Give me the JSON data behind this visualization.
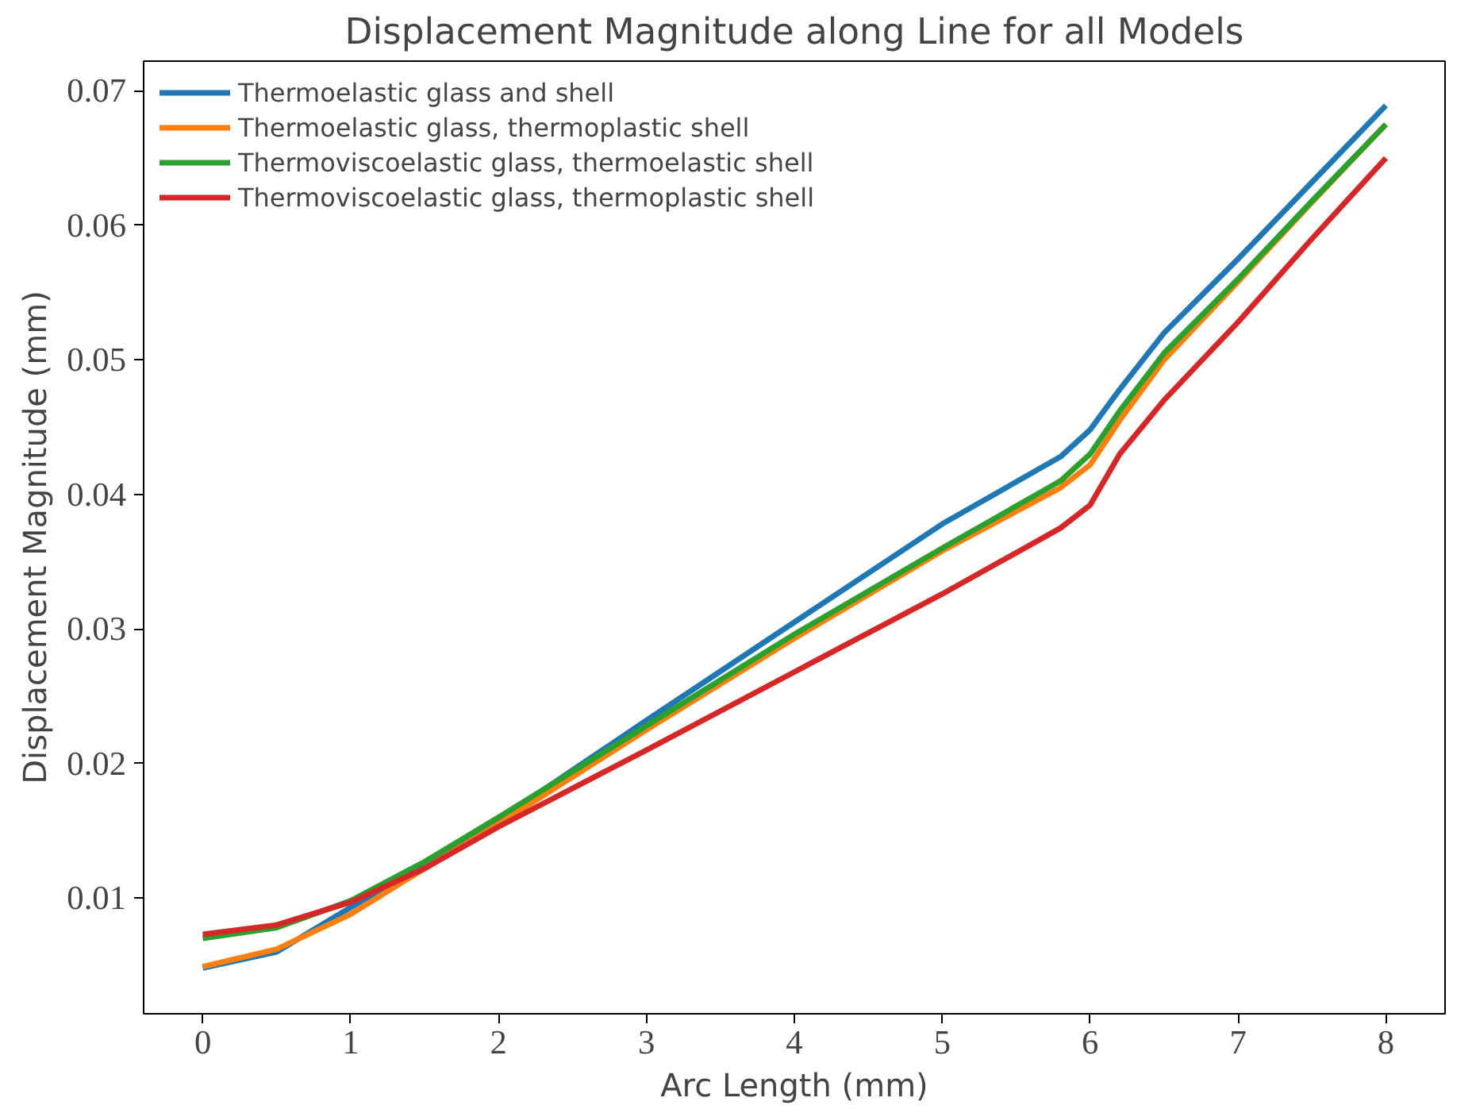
{
  "chart_data": {
    "type": "line",
    "title": "Displacement Magnitude along Line for all Models",
    "xlabel": "Arc Length (mm)",
    "ylabel": "Displacement Magnitude (mm)",
    "x": [
      0,
      0.5,
      1,
      1.5,
      2,
      3,
      4,
      5,
      5.8,
      6,
      6.2,
      6.5,
      7,
      7.5,
      8
    ],
    "series": [
      {
        "name": "Thermoelastic glass and shell",
        "color": "#1f77b4",
        "values": [
          0.0048,
          0.006,
          0.0093,
          0.0125,
          0.0158,
          0.0232,
          0.0305,
          0.0378,
          0.0428,
          0.0448,
          0.0478,
          0.052,
          0.0575,
          0.0632,
          0.0689
        ]
      },
      {
        "name": "Thermoelastic glass, thermoplastic shell",
        "color": "#ff7f0e",
        "values": [
          0.0049,
          0.0062,
          0.0088,
          0.0122,
          0.0155,
          0.0225,
          0.0293,
          0.0358,
          0.0405,
          0.0422,
          0.0455,
          0.05,
          0.0558,
          0.0617,
          0.0675
        ]
      },
      {
        "name": "Thermoviscoelastic glass, thermoelastic shell",
        "color": "#2ca02c",
        "values": [
          0.007,
          0.0078,
          0.0098,
          0.0127,
          0.016,
          0.0228,
          0.0296,
          0.036,
          0.041,
          0.043,
          0.0462,
          0.0505,
          0.056,
          0.0618,
          0.0675
        ]
      },
      {
        "name": "Thermoviscoelastic glass, thermoplastic shell",
        "color": "#d62728",
        "values": [
          0.0073,
          0.008,
          0.0097,
          0.0122,
          0.0153,
          0.021,
          0.0268,
          0.0326,
          0.0375,
          0.0392,
          0.043,
          0.047,
          0.0528,
          0.059,
          0.065
        ]
      }
    ],
    "xlim": [
      -0.4,
      8.4
    ],
    "ylim": [
      0.0014,
      0.0722
    ],
    "xticks": [
      0,
      1,
      2,
      3,
      4,
      5,
      6,
      7,
      8
    ],
    "yticks": [
      {
        "value": 0.01,
        "label": "0.01"
      },
      {
        "value": 0.02,
        "label": "0.02"
      },
      {
        "value": 0.03,
        "label": "0.03"
      },
      {
        "value": 0.04,
        "label": "0.04"
      },
      {
        "value": 0.05,
        "label": "0.05"
      },
      {
        "value": 0.06,
        "label": "0.06"
      },
      {
        "value": 0.07,
        "label": "0.07"
      }
    ],
    "grid": false,
    "legend": "top left",
    "line_style": "solid",
    "marker": "none"
  }
}
